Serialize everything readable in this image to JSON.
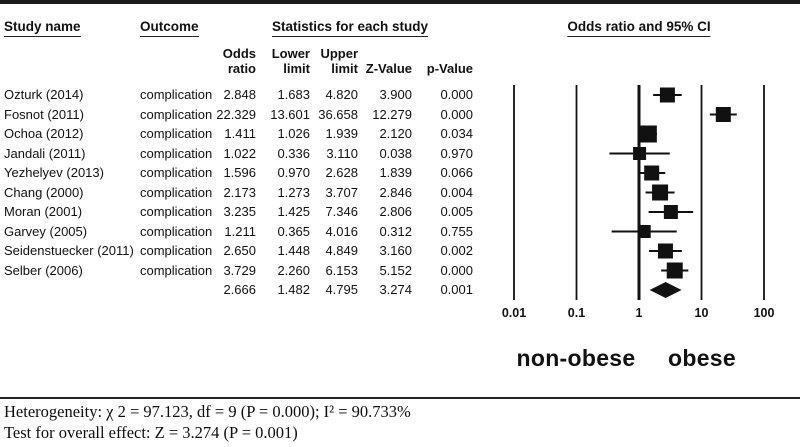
{
  "header": {
    "study_name": "Study name",
    "outcome": "Outcome",
    "statistics": "Statistics for each study"
  },
  "subheader": {
    "columns": [
      {
        "line1": "Odds",
        "line2": "ratio"
      },
      {
        "line1": "Lower",
        "line2": "limit"
      },
      {
        "line1": "Upper",
        "line2": "limit"
      },
      {
        "line1": "",
        "line2": "Z-Value"
      },
      {
        "line1": "",
        "line2": "p-Value"
      }
    ]
  },
  "chart_data": {
    "type": "forest",
    "title": "Odds ratio and 95% CI",
    "x_axis": {
      "scale": "log10",
      "ticks": [
        0.01,
        0.1,
        1,
        10,
        100
      ],
      "tick_labels": [
        "0.01",
        "0.1",
        "1",
        "10",
        "100"
      ],
      "range": [
        0.01,
        100
      ],
      "reference_line": 1
    },
    "group_labels": {
      "left": "non-obese",
      "right": "obese"
    },
    "studies": [
      {
        "name": "Ozturk (2014)",
        "outcome": "complication",
        "odds_ratio": "2.848",
        "lower": "1.683",
        "upper": "4.820",
        "z_value": "3.900",
        "p_value": "0.000",
        "marker_size": 15
      },
      {
        "name": "Fosnot (2011)",
        "outcome": "complication",
        "odds_ratio": "22.329",
        "lower": "13.601",
        "upper": "36.658",
        "z_value": "12.279",
        "p_value": "0.000",
        "marker_size": 15
      },
      {
        "name": "Ochoa (2012)",
        "outcome": "complication",
        "odds_ratio": "1.411",
        "lower": "1.026",
        "upper": "1.939",
        "z_value": "2.120",
        "p_value": "0.034",
        "marker_size": 17
      },
      {
        "name": "Jandali (2011)",
        "outcome": "complication",
        "odds_ratio": "1.022",
        "lower": "0.336",
        "upper": "3.110",
        "z_value": "0.038",
        "p_value": "0.970",
        "marker_size": 13
      },
      {
        "name": "Yezhelyev (2013)",
        "outcome": "complication",
        "odds_ratio": "1.596",
        "lower": "0.970",
        "upper": "2.628",
        "z_value": "1.839",
        "p_value": "0.066",
        "marker_size": 15
      },
      {
        "name": "Chang (2000)",
        "outcome": "complication",
        "odds_ratio": "2.173",
        "lower": "1.273",
        "upper": "3.707",
        "z_value": "2.846",
        "p_value": "0.004",
        "marker_size": 16
      },
      {
        "name": "Moran (2001)",
        "outcome": "complication",
        "odds_ratio": "3.235",
        "lower": "1.425",
        "upper": "7.346",
        "z_value": "2.806",
        "p_value": "0.005",
        "marker_size": 14
      },
      {
        "name": "Garvey (2005)",
        "outcome": "complication",
        "odds_ratio": "1.211",
        "lower": "0.365",
        "upper": "4.016",
        "z_value": "0.312",
        "p_value": "0.755",
        "marker_size": 13
      },
      {
        "name": "Seidenstuecker (2011)",
        "outcome": "complication",
        "odds_ratio": "2.650",
        "lower": "1.448",
        "upper": "4.849",
        "z_value": "3.160",
        "p_value": "0.002",
        "marker_size": 15
      },
      {
        "name": "Selber (2006)",
        "outcome": "complication",
        "odds_ratio": "3.729",
        "lower": "2.260",
        "upper": "6.153",
        "z_value": "5.152",
        "p_value": "0.000",
        "marker_size": 16
      }
    ],
    "overall": {
      "odds_ratio": "2.666",
      "lower": "1.482",
      "upper": "4.795",
      "z_value": "3.274",
      "p_value": "0.001"
    }
  },
  "footer": {
    "heterogeneity": "Heterogeneity:  χ 2 = 97.123, df = 9 (P = 0.000); I² = 90.733%",
    "overall_effect": "Test for overall effect: Z = 3.274 (P = 0.001)"
  }
}
